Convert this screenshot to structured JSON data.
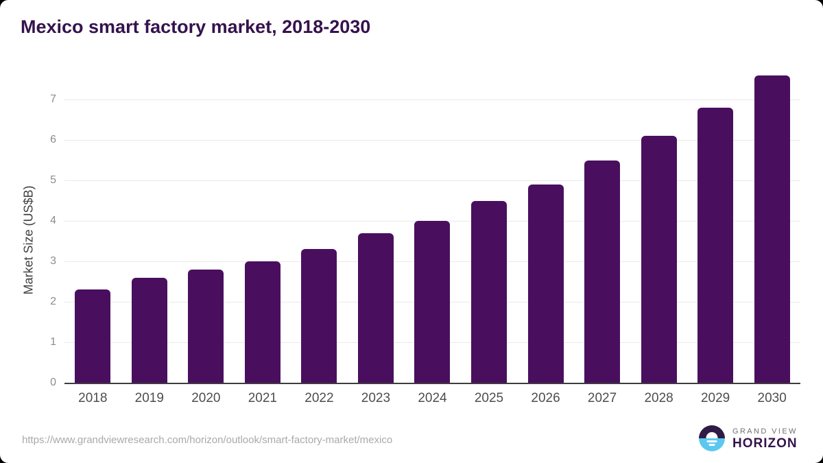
{
  "title": "Mexico smart factory market, 2018-2030",
  "chart_data": {
    "type": "bar",
    "title": "Mexico smart factory market, 2018-2030",
    "categories": [
      "2018",
      "2019",
      "2020",
      "2021",
      "2022",
      "2023",
      "2024",
      "2025",
      "2026",
      "2027",
      "2028",
      "2029",
      "2030"
    ],
    "values": [
      2.3,
      2.6,
      2.8,
      3.0,
      3.3,
      3.7,
      4.0,
      4.5,
      4.9,
      5.5,
      6.1,
      6.8,
      7.6
    ],
    "xlabel": "",
    "ylabel": "Market Size (US$B)",
    "ylim": [
      0,
      7.8
    ],
    "yticks": [
      0,
      1,
      2,
      3,
      4,
      5,
      6,
      7
    ],
    "grid": "horizontal",
    "legend": "none",
    "bar_color": "#490f5e"
  },
  "footer": {
    "source_url": "https://www.grandviewresearch.com/horizon/outlook/smart-factory-market/mexico",
    "logo": {
      "line1": "GRAND VIEW",
      "line2": "HORIZON"
    }
  },
  "colors": {
    "title_purple": "#35124d",
    "bar_purple": "#490f5e",
    "logo_purple": "#2f1b45",
    "logo_blue": "#5cc8f0",
    "y_tick_text": "#8c8c8c",
    "x_label_text": "#4d4d4d",
    "gridline": "#eaeaea",
    "axis_line": "#3d3d3d",
    "url_text": "#a9a9a9"
  }
}
